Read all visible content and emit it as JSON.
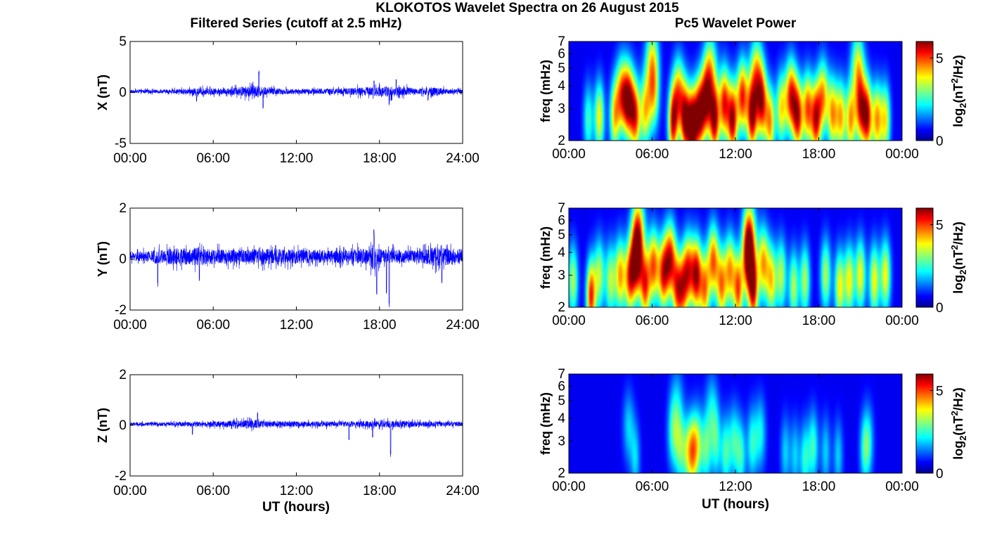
{
  "figure": {
    "title": "KLOKOTOS Wavelet Spectra on 26 August 2015",
    "left_title": "Filtered Series (cutoff at 2.5 mHz)",
    "right_title": "Pc5 Wavelet Power",
    "bottom_xlabel": "UT (hours)"
  },
  "colors": {
    "line": "#0000ff",
    "axis": "#000000",
    "background": "#ffffff"
  },
  "chart_data": [
    {
      "type": "line",
      "series": [
        {
          "name": "X",
          "values": []
        }
      ],
      "title": "Filtered Series (cutoff at 2.5 mHz)",
      "ylabel": "X (nT)",
      "xlabel": "",
      "xlim": [
        0,
        24
      ],
      "ylim": [
        -5,
        5
      ],
      "xticks": [
        0,
        6,
        12,
        18,
        24
      ],
      "xtick_labels": [
        "00:00",
        "06:00",
        "12:00",
        "18:00",
        "24:00"
      ],
      "yticks": [
        -5,
        0,
        5
      ],
      "ytick_labels": [
        "-5",
        "0",
        "5"
      ],
      "baseline": 0.1,
      "noise_env": [
        [
          0,
          0.3
        ],
        [
          3,
          0.35
        ],
        [
          5,
          0.6
        ],
        [
          7,
          0.55
        ],
        [
          9,
          1.1
        ],
        [
          10,
          0.6
        ],
        [
          12,
          0.45
        ],
        [
          15,
          0.5
        ],
        [
          17.5,
          0.85
        ],
        [
          19,
          1.0
        ],
        [
          21,
          0.5
        ],
        [
          21.8,
          0.8
        ],
        [
          23,
          0.45
        ],
        [
          24,
          0.35
        ]
      ],
      "spikes": [
        [
          9.3,
          2.2
        ],
        [
          9.6,
          -1.6
        ],
        [
          4.8,
          -0.9
        ],
        [
          17.6,
          1.2
        ],
        [
          18.7,
          -1.3
        ],
        [
          21.5,
          -0.8
        ],
        [
          19.2,
          1.3
        ]
      ]
    },
    {
      "type": "line",
      "series": [
        {
          "name": "Y",
          "values": []
        }
      ],
      "ylabel": "Y (nT)",
      "xlabel": "",
      "xlim": [
        0,
        24
      ],
      "ylim": [
        -2,
        2
      ],
      "xticks": [
        0,
        6,
        12,
        18,
        24
      ],
      "xtick_labels": [
        "00:00",
        "06:00",
        "12:00",
        "18:00",
        "24:00"
      ],
      "yticks": [
        -2,
        0,
        2
      ],
      "ytick_labels": [
        "-2",
        "0",
        "2"
      ],
      "baseline": 0.1,
      "noise_env": [
        [
          0,
          0.3
        ],
        [
          1.5,
          0.4
        ],
        [
          2,
          0.55
        ],
        [
          5,
          0.65
        ],
        [
          6,
          0.55
        ],
        [
          8,
          0.5
        ],
        [
          10,
          0.6
        ],
        [
          12,
          0.5
        ],
        [
          15,
          0.45
        ],
        [
          17.2,
          0.6
        ],
        [
          17.6,
          0.95
        ],
        [
          18.2,
          0.5
        ],
        [
          21,
          0.45
        ],
        [
          22,
          0.7
        ],
        [
          24,
          0.55
        ]
      ],
      "spikes": [
        [
          17.6,
          1.2
        ],
        [
          17.8,
          -1.4
        ],
        [
          18.7,
          -1.9
        ],
        [
          18.5,
          -1.6
        ],
        [
          2.0,
          -1.1
        ],
        [
          22.5,
          -1.0
        ],
        [
          5.0,
          -0.9
        ]
      ]
    },
    {
      "type": "line",
      "series": [
        {
          "name": "Z",
          "values": []
        }
      ],
      "ylabel": "Z (nT)",
      "xlabel": "UT (hours)",
      "xlim": [
        0,
        24
      ],
      "ylim": [
        -2,
        2
      ],
      "xticks": [
        0,
        6,
        12,
        18,
        24
      ],
      "xtick_labels": [
        "00:00",
        "06:00",
        "12:00",
        "18:00",
        "24:00"
      ],
      "yticks": [
        -2,
        0,
        2
      ],
      "ytick_labels": [
        "-2",
        "0",
        "2"
      ],
      "baseline": 0.05,
      "noise_env": [
        [
          0,
          0.12
        ],
        [
          4,
          0.15
        ],
        [
          6,
          0.2
        ],
        [
          9,
          0.3
        ],
        [
          10,
          0.2
        ],
        [
          16,
          0.2
        ],
        [
          17.6,
          0.25
        ],
        [
          19,
          0.25
        ],
        [
          24,
          0.15
        ]
      ],
      "spikes": [
        [
          9.2,
          0.55
        ],
        [
          18.8,
          -1.3
        ],
        [
          15.8,
          -0.6
        ],
        [
          17.5,
          -0.5
        ],
        [
          4.5,
          -0.4
        ]
      ]
    },
    {
      "type": "heatmap",
      "title": "Pc5 Wavelet Power",
      "ylabel": "freq (mHz)",
      "xlabel": "",
      "colorbar_label": "log2(nT2/Hz)",
      "xlim": [
        0,
        24
      ],
      "ylim": [
        2,
        7
      ],
      "y_scale": "log",
      "clim": [
        0,
        6
      ],
      "xticks": [
        0,
        6,
        12,
        18,
        24
      ],
      "xtick_labels": [
        "00:00",
        "06:00",
        "12:00",
        "18:00",
        "00:00"
      ],
      "yticks": [
        2,
        3,
        4,
        5,
        6,
        7
      ],
      "ytick_labels": [
        "2",
        "3",
        "4",
        "5",
        "6",
        "7"
      ],
      "cticks": [
        0,
        5
      ],
      "colormap": "jet",
      "blobs": [
        [
          1.4,
          2.6,
          2.2
        ],
        [
          2.2,
          2.7,
          3.5
        ],
        [
          3.3,
          2.7,
          3.5
        ],
        [
          3.8,
          3.6,
          4
        ],
        [
          4.3,
          3.3,
          5.5
        ],
        [
          4.8,
          2.7,
          4.5
        ],
        [
          5.5,
          2.9,
          3.5
        ],
        [
          6.1,
          3.5,
          3
        ],
        [
          7.5,
          2.5,
          5
        ],
        [
          7.9,
          3.6,
          4
        ],
        [
          8.4,
          2.6,
          5.5
        ],
        [
          8.9,
          2.4,
          6.2
        ],
        [
          9.4,
          2.8,
          5.5
        ],
        [
          9.9,
          3.3,
          5
        ],
        [
          10.5,
          2.6,
          5.5
        ],
        [
          11.2,
          3.2,
          5
        ],
        [
          11.8,
          2.6,
          5.5
        ],
        [
          12.5,
          3.5,
          5
        ],
        [
          13.2,
          2.7,
          5.5
        ],
        [
          13.9,
          3.2,
          5
        ],
        [
          14.5,
          2.5,
          4
        ],
        [
          15.3,
          3.0,
          3.5
        ],
        [
          16.0,
          3.5,
          5
        ],
        [
          16.5,
          2.7,
          5
        ],
        [
          17.2,
          3.0,
          4.5
        ],
        [
          17.8,
          2.6,
          5
        ],
        [
          18.3,
          3.5,
          4
        ],
        [
          19.0,
          2.8,
          4
        ],
        [
          19.6,
          2.7,
          3.8
        ],
        [
          20.3,
          2.6,
          4
        ],
        [
          21.0,
          3.0,
          4.5
        ],
        [
          21.5,
          2.7,
          5.2
        ],
        [
          22.2,
          2.6,
          4
        ],
        [
          22.8,
          2.6,
          3.5
        ],
        [
          10.2,
          5.0,
          3
        ],
        [
          13.5,
          4.7,
          3.5
        ],
        [
          6.0,
          5.5,
          3
        ],
        [
          20.8,
          5.2,
          3
        ]
      ]
    },
    {
      "type": "heatmap",
      "ylabel": "freq (mHz)",
      "xlabel": "",
      "colorbar_label": "log2(nT2/Hz)",
      "xlim": [
        0,
        24
      ],
      "ylim": [
        2,
        7
      ],
      "y_scale": "log",
      "clim": [
        0,
        6
      ],
      "xticks": [
        0,
        6,
        12,
        18,
        24
      ],
      "xtick_labels": [
        "00:00",
        "06:00",
        "12:00",
        "18:00",
        "00:00"
      ],
      "yticks": [
        2,
        3,
        4,
        5,
        6,
        7
      ],
      "ytick_labels": [
        "2",
        "3",
        "4",
        "5",
        "6",
        "7"
      ],
      "cticks": [
        0,
        5
      ],
      "colormap": "jet",
      "blobs": [
        [
          0.3,
          2.8,
          3
        ],
        [
          1.6,
          2.3,
          5
        ],
        [
          2.2,
          3.0,
          3
        ],
        [
          3.0,
          2.8,
          3
        ],
        [
          3.7,
          3.0,
          4
        ],
        [
          4.4,
          2.9,
          4.5
        ],
        [
          4.9,
          3.6,
          5.5
        ],
        [
          5.5,
          2.6,
          4.5
        ],
        [
          6.1,
          3.4,
          4.5
        ],
        [
          6.8,
          3.0,
          4.5
        ],
        [
          7.3,
          3.7,
          5
        ],
        [
          7.8,
          2.5,
          4
        ],
        [
          8.2,
          2.5,
          3.5
        ],
        [
          8.6,
          3.2,
          4.5
        ],
        [
          9.2,
          3.0,
          5.5
        ],
        [
          9.8,
          2.5,
          4
        ],
        [
          10.4,
          3.6,
          4.5
        ],
        [
          11.0,
          2.6,
          4
        ],
        [
          11.6,
          3.2,
          4
        ],
        [
          12.2,
          2.5,
          4.5
        ],
        [
          12.9,
          3.5,
          4.5
        ],
        [
          13.3,
          2.5,
          5
        ],
        [
          14.0,
          3.5,
          4
        ],
        [
          14.6,
          2.8,
          3.5
        ],
        [
          15.3,
          3.0,
          3
        ],
        [
          16.2,
          2.6,
          3
        ],
        [
          17.0,
          2.8,
          3
        ],
        [
          18.5,
          3.0,
          3
        ],
        [
          19.5,
          2.6,
          3.5
        ],
        [
          20.2,
          2.8,
          3.5
        ],
        [
          21.0,
          3.0,
          3.5
        ],
        [
          22.0,
          2.8,
          3.5
        ],
        [
          22.8,
          3.0,
          3.5
        ],
        [
          13.0,
          5.0,
          4
        ],
        [
          5.0,
          5.5,
          3.5
        ]
      ]
    },
    {
      "type": "heatmap",
      "ylabel": "freq (mHz)",
      "xlabel": "UT (hours)",
      "colorbar_label": "log2(nT2/Hz)",
      "xlim": [
        0,
        24
      ],
      "ylim": [
        2,
        7
      ],
      "y_scale": "log",
      "clim": [
        0,
        6
      ],
      "xticks": [
        0,
        6,
        12,
        18,
        24
      ],
      "xtick_labels": [
        "00:00",
        "06:00",
        "12:00",
        "18:00",
        "00:00"
      ],
      "yticks": [
        2,
        3,
        4,
        5,
        6,
        7
      ],
      "ytick_labels": [
        "2",
        "3",
        "4",
        "5",
        "6",
        "7"
      ],
      "cticks": [
        0,
        5
      ],
      "colormap": "jet",
      "blobs": [
        [
          4.3,
          3.6,
          1.5
        ],
        [
          4.8,
          2.4,
          1.5
        ],
        [
          7.5,
          3.3,
          2
        ],
        [
          8.0,
          2.8,
          2.2
        ],
        [
          8.5,
          2.6,
          2
        ],
        [
          8.9,
          2.6,
          3.5
        ],
        [
          9.3,
          2.9,
          2.5
        ],
        [
          9.9,
          2.7,
          2.2
        ],
        [
          10.6,
          2.9,
          2
        ],
        [
          11.3,
          2.6,
          2.2
        ],
        [
          11.9,
          3.0,
          2
        ],
        [
          12.4,
          2.5,
          2
        ],
        [
          13.2,
          2.9,
          2
        ],
        [
          13.8,
          3.3,
          1.8
        ],
        [
          15.6,
          2.6,
          1.5
        ],
        [
          16.3,
          2.5,
          1.5
        ],
        [
          17.0,
          2.4,
          2
        ],
        [
          17.6,
          2.8,
          2.2
        ],
        [
          18.5,
          2.6,
          1.5
        ],
        [
          19.4,
          2.5,
          1.5
        ],
        [
          21.3,
          2.7,
          1.8
        ],
        [
          21.6,
          3.0,
          1.5
        ],
        [
          10.3,
          4.5,
          1.5
        ],
        [
          7.8,
          5.0,
          1.2
        ]
      ]
    }
  ]
}
